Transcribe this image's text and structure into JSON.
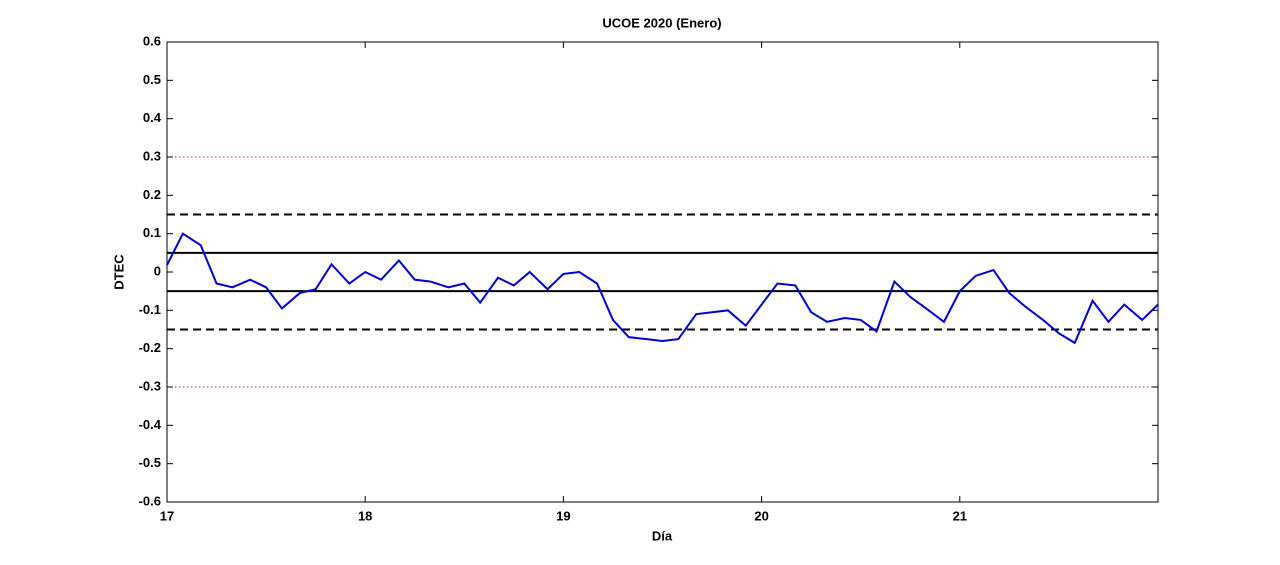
{
  "chart_data": {
    "type": "line",
    "title": "UCOE 2020 (Enero)",
    "x_label": "Día",
    "y_label": "DTEC",
    "x": [
      17.0,
      17.08,
      17.17,
      17.25,
      17.33,
      17.42,
      17.5,
      17.58,
      17.67,
      17.75,
      17.83,
      17.92,
      18.0,
      18.08,
      18.17,
      18.25,
      18.33,
      18.42,
      18.5,
      18.58,
      18.67,
      18.75,
      18.83,
      18.92,
      19.0,
      19.08,
      19.17,
      19.25,
      19.33,
      19.42,
      19.5,
      19.58,
      19.67,
      19.75,
      19.83,
      19.92,
      20.0,
      20.08,
      20.17,
      20.25,
      20.33,
      20.42,
      20.5,
      20.58,
      20.67,
      20.75,
      20.83,
      20.92,
      21.0,
      21.08,
      21.17,
      21.25,
      21.33,
      21.42,
      21.5,
      21.58,
      21.67,
      21.75,
      21.83,
      21.92,
      22.0
    ],
    "series": [
      {
        "color": "#0000cc",
        "values": [
          0.018,
          0.1,
          0.07,
          -0.03,
          -0.04,
          -0.02,
          -0.04,
          -0.095,
          -0.055,
          -0.045,
          0.02,
          -0.03,
          0.0,
          -0.02,
          0.03,
          -0.02,
          -0.025,
          -0.04,
          -0.03,
          -0.08,
          -0.015,
          -0.035,
          0.0,
          -0.045,
          -0.005,
          0.0,
          -0.03,
          -0.125,
          -0.17,
          -0.175,
          -0.18,
          -0.175,
          -0.11,
          -0.105,
          -0.1,
          -0.14,
          -0.085,
          -0.03,
          -0.035,
          -0.105,
          -0.13,
          -0.12,
          -0.125,
          -0.155,
          -0.025,
          -0.065,
          -0.095,
          -0.13,
          -0.05,
          -0.01,
          0.005,
          -0.055,
          -0.09,
          -0.125,
          -0.16,
          -0.185,
          -0.075,
          -0.13,
          -0.085,
          -0.125,
          -0.085
        ]
      }
    ],
    "reference_lines": [
      {
        "value": 0.3,
        "color": "#ff0000",
        "style": "dotted"
      },
      {
        "value": -0.3,
        "color": "#ff0000",
        "style": "dotted"
      },
      {
        "value": 0.15,
        "color": "#000000",
        "style": "dashed"
      },
      {
        "value": -0.15,
        "color": "#000000",
        "style": "dashed"
      },
      {
        "value": 0.05,
        "color": "#000000",
        "style": "solid"
      },
      {
        "value": -0.05,
        "color": "#000000",
        "style": "solid"
      }
    ],
    "xlim": [
      17,
      22
    ],
    "xticks": [
      17,
      18,
      19,
      20,
      21
    ],
    "ylim": [
      -0.6,
      0.6
    ],
    "yticks": [
      0.6,
      0.5,
      0.4,
      0.3,
      0.2,
      0.1,
      0,
      -0.1,
      -0.2,
      -0.3,
      -0.4,
      -0.5,
      -0.6
    ]
  }
}
